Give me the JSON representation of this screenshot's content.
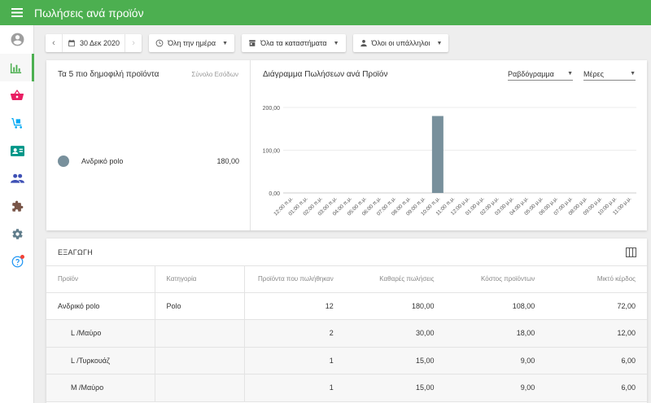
{
  "app": {
    "title": "Πωλήσεις ανά προϊόν"
  },
  "sidebar": {
    "items": [
      {
        "name": "account",
        "icon": "account-circle-icon",
        "color": "#9e9e9e",
        "active": false
      },
      {
        "name": "reports",
        "icon": "bar-chart-icon",
        "color": "#4caf50",
        "active": true
      },
      {
        "name": "sales",
        "icon": "basket-icon",
        "color": "#e91e63",
        "active": false
      },
      {
        "name": "inventory",
        "icon": "dolly-icon",
        "color": "#03a9f4",
        "active": false
      },
      {
        "name": "customers",
        "icon": "contact-card-icon",
        "color": "#009688",
        "active": false
      },
      {
        "name": "employees",
        "icon": "people-icon",
        "color": "#3f51b5",
        "active": false
      },
      {
        "name": "integrations",
        "icon": "puzzle-icon",
        "color": "#795548",
        "active": false
      },
      {
        "name": "settings",
        "icon": "gear-icon",
        "color": "#607d8b",
        "active": false
      },
      {
        "name": "help",
        "icon": "help-icon",
        "color": "#2196f3",
        "active": false
      }
    ]
  },
  "toolbar": {
    "date": "30 Δεκ 2020",
    "time_range": "Όλη την ημέρα",
    "stores": "Όλα τα καταστήματα",
    "employees": "Όλοι οι υπάλληλοι"
  },
  "top_products": {
    "title": "Τα 5 πιο δημοφιλή προϊόντα",
    "column": "Σύνολο Εσόδων",
    "items": [
      {
        "name": "Ανδρικό polo",
        "value": "180,00",
        "color": "#78909c"
      }
    ]
  },
  "chart_panel": {
    "title": "Διάγραμμα Πωλήσεων ανά Προϊόν",
    "chart_type_select": "Ραβδόγραμμα",
    "period_select": "Μέρες"
  },
  "chart_data": {
    "type": "bar",
    "categories": [
      "12:00 π.μ.",
      "01:00 π.μ.",
      "02:00 π.μ.",
      "03:00 π.μ.",
      "04:00 π.μ.",
      "05:00 π.μ.",
      "06:00 π.μ.",
      "07:00 π.μ.",
      "08:00 π.μ.",
      "09:00 π.μ.",
      "10:00 π.μ.",
      "11:00 π.μ.",
      "12:00 μ.μ.",
      "01:00 μ.μ.",
      "02:00 μ.μ.",
      "03:00 μ.μ.",
      "04:00 μ.μ.",
      "05:00 μ.μ.",
      "06:00 μ.μ.",
      "07:00 μ.μ.",
      "08:00 μ.μ.",
      "09:00 μ.μ.",
      "10:00 μ.μ.",
      "11:00 μ.μ."
    ],
    "values": [
      0,
      0,
      0,
      0,
      0,
      0,
      0,
      0,
      0,
      0,
      180,
      0,
      0,
      0,
      0,
      0,
      0,
      0,
      0,
      0,
      0,
      0,
      0,
      0
    ],
    "yticks": [
      0,
      100,
      200
    ],
    "ytick_labels": [
      "0,00",
      "100,00",
      "200,00"
    ],
    "ylim": [
      0,
      200
    ],
    "grid": true,
    "bar_color": "#78909c"
  },
  "table": {
    "export_label": "ΕΞΑΓΩΓΗ",
    "columns": [
      "Προϊόν",
      "Κατηγορία",
      "Προϊόντα που πωλήθηκαν",
      "Καθαρές πωλήσεις",
      "Κόστος προϊόντων",
      "Μικτό κέρδος"
    ],
    "rows": [
      {
        "product": "Ανδρικό polo",
        "category": "Polo",
        "sold": "12",
        "net": "180,00",
        "cost": "108,00",
        "profit": "72,00"
      },
      {
        "product": "L /Μαύρο",
        "category": "",
        "sold": "2",
        "net": "30,00",
        "cost": "18,00",
        "profit": "12,00"
      },
      {
        "product": "L /Τυρκουάζ",
        "category": "",
        "sold": "1",
        "net": "15,00",
        "cost": "9,00",
        "profit": "6,00"
      },
      {
        "product": "M /Μαύρο",
        "category": "",
        "sold": "1",
        "net": "15,00",
        "cost": "9,00",
        "profit": "6,00"
      }
    ]
  }
}
